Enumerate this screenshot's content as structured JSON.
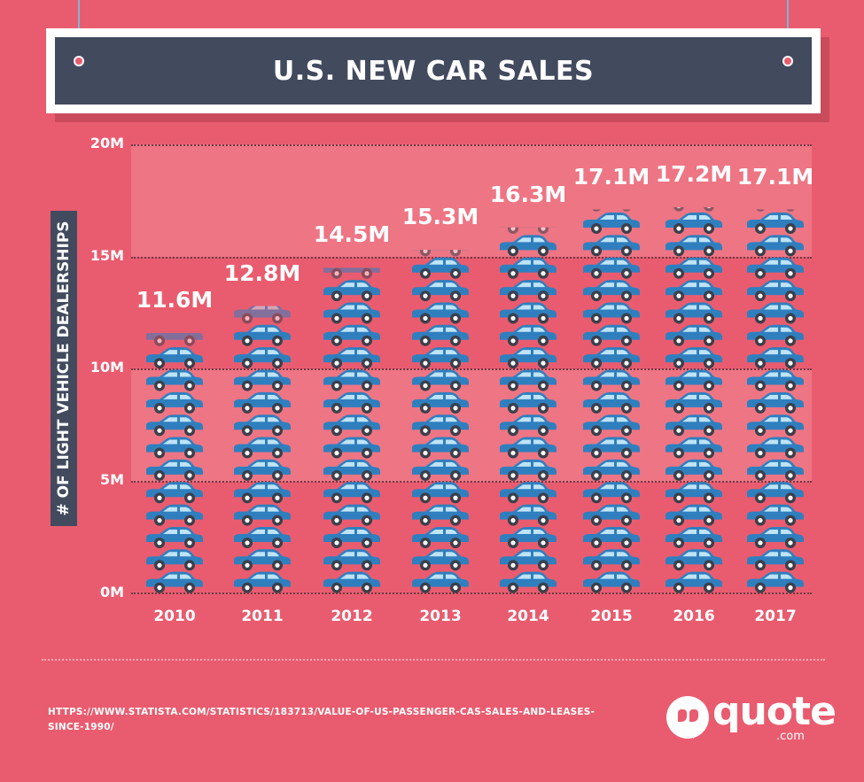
{
  "title": "U.S. NEW CAR SALES",
  "source_text": "HTTPS://WWW.STATISTA.COM/STATISTICS/183713/VALUE-OF-US-PASSENGER-CAS-SALES-AND-LEASES-SINCE-1990/",
  "logo": {
    "word": "quote",
    "suffix": ".com"
  },
  "colors": {
    "background": "#e95c6f",
    "banner": "#424a5e",
    "car": "#2f7fbf",
    "car_window": "#bfe3f7",
    "band": "#ef7c8a"
  },
  "chart_data": {
    "type": "bar",
    "title": "U.S. NEW CAR SALES",
    "ylabel": "# OF LIGHT VEHICLE DEALERSHIPS",
    "xlabel": "",
    "categories": [
      "2010",
      "2011",
      "2012",
      "2013",
      "2014",
      "2015",
      "2016",
      "2017"
    ],
    "values": [
      11.6,
      12.8,
      14.5,
      15.3,
      16.3,
      17.1,
      17.2,
      17.1
    ],
    "value_labels": [
      "11.6M",
      "12.8M",
      "14.5M",
      "15.3M",
      "16.3M",
      "17.1M",
      "17.2M",
      "17.1M"
    ],
    "y_ticks": [
      "0M",
      "5M",
      "10M",
      "15M",
      "20M"
    ],
    "ylim": [
      0,
      20
    ],
    "grid": true,
    "legend": "none",
    "mark": "stacked car icons, one icon per 1M"
  }
}
